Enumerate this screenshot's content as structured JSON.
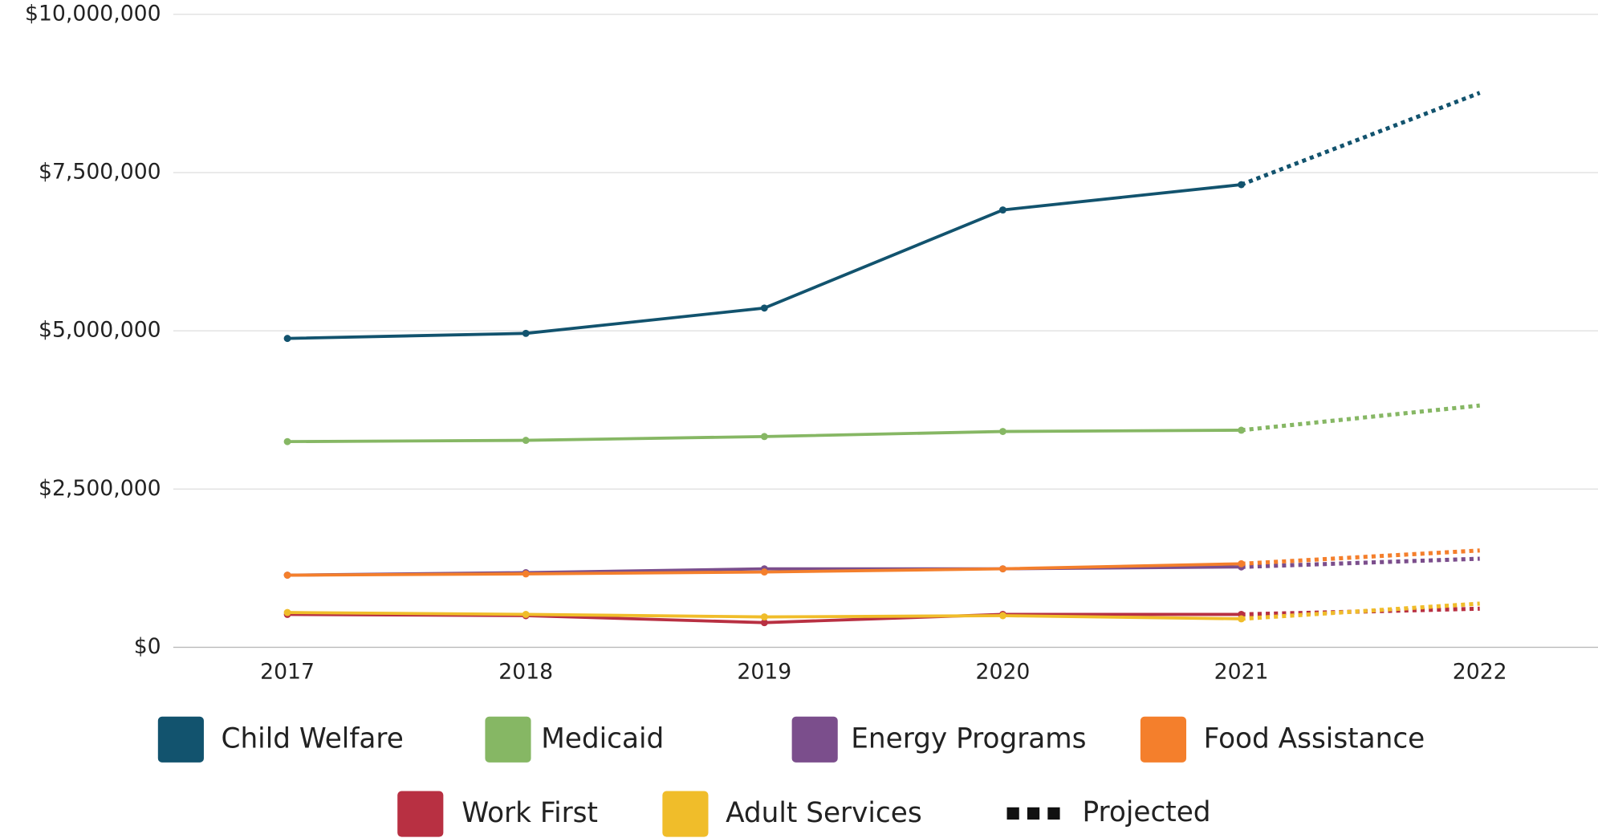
{
  "chart_data": {
    "type": "line",
    "categories": [
      "2017",
      "2018",
      "2019",
      "2020",
      "2021",
      "2022"
    ],
    "series": [
      {
        "name": "Child Welfare",
        "color": "#12536e",
        "values": [
          4880000,
          4960000,
          5360000,
          6910000,
          7310000,
          8760000
        ]
      },
      {
        "name": "Medicaid",
        "color": "#86b764",
        "values": [
          3250000,
          3270000,
          3330000,
          3410000,
          3430000,
          3820000
        ]
      },
      {
        "name": "Energy Programs",
        "color": "#7b4e8c",
        "values": [
          1140000,
          1180000,
          1240000,
          1240000,
          1270000,
          1400000
        ]
      },
      {
        "name": "Food Assistance",
        "color": "#f47f2c",
        "values": [
          1140000,
          1160000,
          1190000,
          1240000,
          1320000,
          1530000
        ]
      },
      {
        "name": "Work First",
        "color": "#b83042",
        "values": [
          520000,
          500000,
          390000,
          520000,
          520000,
          610000
        ]
      },
      {
        "name": "Adult Services",
        "color": "#f0bd2a",
        "values": [
          550000,
          520000,
          480000,
          500000,
          450000,
          690000
        ]
      }
    ],
    "projected_label": "Projected",
    "projected_index": 5,
    "ylim": [
      0,
      10000000
    ],
    "yticks": [
      {
        "value": 0,
        "label": "$0"
      },
      {
        "value": 2500000,
        "label": "$2,500,000"
      },
      {
        "value": 5000000,
        "label": "$5,000,000"
      },
      {
        "value": 7500000,
        "label": "$7,500,000"
      },
      {
        "value": 10000000,
        "label": "$10,000,000"
      }
    ],
    "grid": true
  }
}
